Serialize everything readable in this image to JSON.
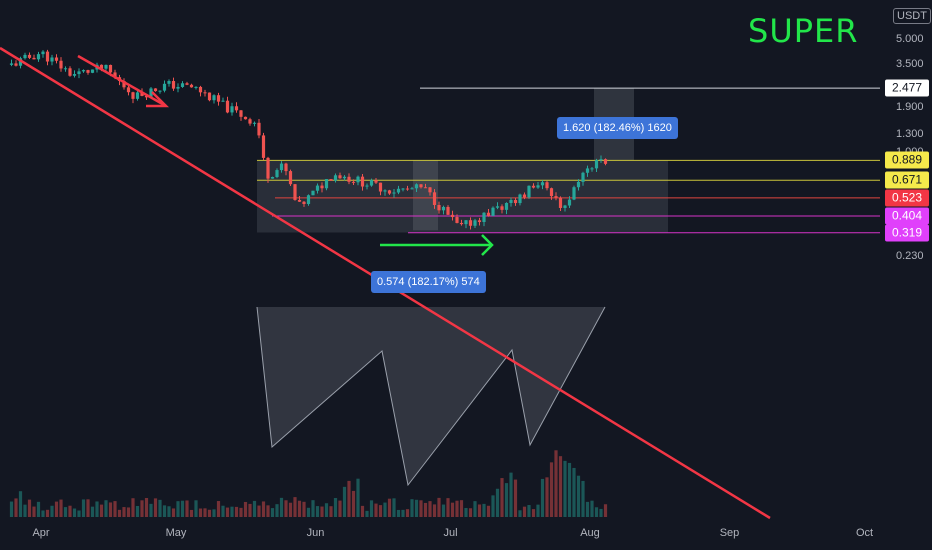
{
  "ticker": "SUPER",
  "currency": "USDT",
  "price_axis": {
    "ticks": [
      {
        "label": "5.000",
        "value": 5.0
      },
      {
        "label": "3.500",
        "value": 3.5
      },
      {
        "label": "1.900",
        "value": 1.9
      },
      {
        "label": "1.300",
        "value": 1.3
      },
      {
        "label": "1.000",
        "value": 1.0
      },
      {
        "label": "0.230",
        "value": 0.23
      }
    ]
  },
  "time_axis": {
    "ticks": [
      "Apr",
      "May",
      "Jun",
      "Jul",
      "Aug",
      "Sep",
      "Oct"
    ]
  },
  "levels": [
    {
      "label": "2.477",
      "value": 2.477,
      "line": "#d1d4dc",
      "bg": "#ffffff",
      "fg": "#131722"
    },
    {
      "label": "0.889",
      "value": 0.889,
      "line": "#c9c33b",
      "bg": "#f5e94b",
      "fg": "#131722"
    },
    {
      "label": "0.671",
      "value": 0.671,
      "line": "#c9c33b",
      "bg": "#f5e94b",
      "fg": "#131722"
    },
    {
      "label": "0.523",
      "value": 0.523,
      "line": "#e0453f",
      "bg": "#f23645",
      "fg": "#ffffff"
    },
    {
      "label": "0.404",
      "value": 0.404,
      "line": "#d633c8",
      "bg": "#e040fb",
      "fg": "#ffffff"
    },
    {
      "label": "0.319",
      "value": 0.319,
      "line": "#d633c8",
      "bg": "#e040fb",
      "fg": "#ffffff"
    }
  ],
  "measurements": [
    {
      "text": "0.574 (182.17%) 574"
    },
    {
      "text": "1.620 (182.46%) 1620"
    }
  ],
  "colors": {
    "background": "#131722",
    "up": "#26a69a",
    "down": "#ef5350",
    "trendline": "#f23645",
    "ticker": "#22e64a",
    "arrow_green": "#22e64a",
    "arrow_red": "#f23645"
  },
  "chart_data": {
    "type": "candlestick",
    "scale": "log",
    "ylim": [
      0.23,
      5.5
    ],
    "title": "",
    "xlabel": "",
    "ylabel": "",
    "annotations": [
      "Descending trendline",
      "Inverse head and shoulders pattern",
      "Measured move targets"
    ],
    "price_path": [
      {
        "date": "2024-03-25",
        "price": 3.4
      },
      {
        "date": "2024-04-01",
        "price": 4.1
      },
      {
        "date": "2024-04-08",
        "price": 3.0
      },
      {
        "date": "2024-04-15",
        "price": 3.3
      },
      {
        "date": "2024-04-22",
        "price": 2.2
      },
      {
        "date": "2024-04-29",
        "price": 2.6
      },
      {
        "date": "2024-05-05",
        "price": 2.5
      },
      {
        "date": "2024-05-12",
        "price": 1.9
      },
      {
        "date": "2024-05-19",
        "price": 1.5
      },
      {
        "date": "2024-05-21",
        "price": 0.72
      },
      {
        "date": "2024-05-25",
        "price": 0.82
      },
      {
        "date": "2024-05-28",
        "price": 0.45
      },
      {
        "date": "2024-06-05",
        "price": 0.74
      },
      {
        "date": "2024-06-18",
        "price": 0.58
      },
      {
        "date": "2024-06-25",
        "price": 0.6
      },
      {
        "date": "2024-07-03",
        "price": 0.34
      },
      {
        "date": "2024-07-12",
        "price": 0.46
      },
      {
        "date": "2024-07-22",
        "price": 0.66
      },
      {
        "date": "2024-07-26",
        "price": 0.42
      },
      {
        "date": "2024-07-30",
        "price": 0.74
      },
      {
        "date": "2024-08-03",
        "price": 0.9
      },
      {
        "date": "2024-08-05",
        "price": 0.86
      }
    ]
  }
}
